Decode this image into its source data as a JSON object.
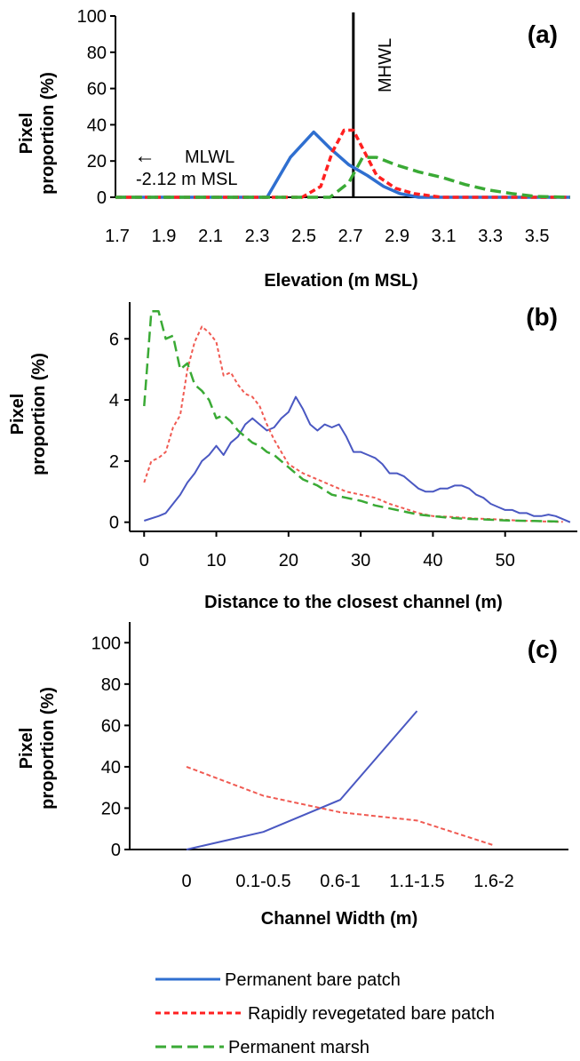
{
  "colors": {
    "permanent_bare_patch": "#2f6fd0",
    "permanent_bare_patch_c": "#4a58c2",
    "rapidly_revegetated": "#ff2020",
    "rapidly_revegetated_c": "#f05a52",
    "permanent_marsh": "#3aaa35"
  },
  "legend": {
    "items": [
      {
        "label": "Permanent bare patch",
        "color": "#2f6fd0",
        "dash": "solid"
      },
      {
        "label": "Rapidly revegetated bare patch",
        "color": "#ff2020",
        "dash": "short"
      },
      {
        "label": "Permanent marsh",
        "color": "#3aaa35",
        "dash": "long"
      }
    ]
  },
  "chart_data": [
    {
      "type": "line",
      "panel_label": "(a)",
      "title": "",
      "xlabel": "Elevation (m MSL)",
      "ylabel": [
        "Pixel",
        "proportion (%)"
      ],
      "xlim": [
        1.7,
        3.65
      ],
      "ylim": [
        0,
        100
      ],
      "xticks": [
        "1.7",
        "1.9",
        "2.1",
        "2.3",
        "2.5",
        "2.7",
        "2.9",
        "3.1",
        "3.3",
        "3.5"
      ],
      "yticks": [
        "0",
        "20",
        "40",
        "60",
        "80",
        "100"
      ],
      "vline": {
        "x": 2.72,
        "label": "MHWL"
      },
      "annotation": {
        "arrow": "←",
        "lines": [
          "MLWL",
          "-2.12 m MSL"
        ]
      },
      "series": [
        {
          "name": "Permanent bare patch",
          "x": [
            1.7,
            2.35,
            2.45,
            2.55,
            2.62,
            2.7,
            2.78,
            2.85,
            2.92,
            3.0,
            3.65
          ],
          "y": [
            0,
            0,
            22,
            36,
            27,
            18,
            12,
            6,
            2,
            0,
            0
          ]
        },
        {
          "name": "Rapidly revegetated bare patch",
          "x": [
            1.7,
            2.5,
            2.58,
            2.63,
            2.68,
            2.72,
            2.76,
            2.82,
            2.9,
            2.98,
            3.1,
            3.65
          ],
          "y": [
            0,
            0,
            6,
            25,
            37,
            37,
            27,
            12,
            5,
            2,
            0,
            0
          ]
        },
        {
          "name": "Permanent marsh",
          "x": [
            1.7,
            2.62,
            2.7,
            2.76,
            2.82,
            2.9,
            3.0,
            3.1,
            3.2,
            3.3,
            3.4,
            3.5,
            3.65
          ],
          "y": [
            0,
            0,
            8,
            22,
            22,
            18,
            14,
            11,
            7,
            4,
            2,
            0.5,
            0
          ]
        }
      ]
    },
    {
      "type": "line",
      "panel_label": "(b)",
      "title": "",
      "xlabel": "Distance to the closest channel (m)",
      "ylabel": [
        "Pixel",
        "proportion (%)"
      ],
      "xlim": [
        -2,
        60
      ],
      "ylim": [
        -0.3,
        7.2
      ],
      "xticks": [
        "0",
        "10",
        "20",
        "30",
        "40",
        "50"
      ],
      "yticks": [
        "0",
        "2",
        "4",
        "6"
      ],
      "series": [
        {
          "name": "Permanent bare patch",
          "x": [
            0,
            2,
            3,
            4,
            5,
            6,
            7,
            8,
            9,
            10,
            11,
            12,
            13,
            14,
            15,
            16,
            17,
            18,
            19,
            20,
            21,
            22,
            23,
            24,
            25,
            26,
            27,
            28,
            29,
            30,
            31,
            32,
            33,
            34,
            35,
            36,
            37,
            38,
            39,
            40,
            41,
            42,
            43,
            44,
            45,
            46,
            47,
            48,
            49,
            50,
            51,
            52,
            53,
            54,
            55,
            56,
            57,
            58,
            59
          ],
          "y": [
            0.05,
            0.2,
            0.3,
            0.6,
            0.9,
            1.3,
            1.6,
            2.0,
            2.2,
            2.5,
            2.2,
            2.6,
            2.8,
            3.2,
            3.4,
            3.2,
            3.0,
            3.1,
            3.4,
            3.6,
            4.1,
            3.7,
            3.2,
            3.0,
            3.2,
            3.1,
            3.2,
            2.8,
            2.3,
            2.3,
            2.2,
            2.1,
            1.9,
            1.6,
            1.6,
            1.5,
            1.3,
            1.1,
            1.0,
            1.0,
            1.1,
            1.1,
            1.2,
            1.2,
            1.1,
            0.9,
            0.8,
            0.6,
            0.5,
            0.4,
            0.4,
            0.3,
            0.3,
            0.2,
            0.2,
            0.25,
            0.2,
            0.1,
            0.0
          ]
        },
        {
          "name": "Rapidly revegetated bare patch",
          "x": [
            0,
            1,
            2,
            3,
            4,
            5,
            6,
            7,
            8,
            9,
            10,
            11,
            12,
            13,
            14,
            15,
            16,
            17,
            18,
            19,
            20,
            22,
            24,
            26,
            28,
            30,
            32,
            34,
            36,
            38,
            40,
            42,
            44,
            46,
            48,
            50,
            52,
            54,
            56,
            58
          ],
          "y": [
            1.3,
            2.0,
            2.1,
            2.3,
            3.1,
            3.5,
            5.0,
            5.9,
            6.4,
            6.2,
            5.9,
            4.8,
            4.9,
            4.5,
            4.2,
            4.1,
            3.8,
            3.2,
            2.7,
            2.3,
            1.9,
            1.6,
            1.4,
            1.2,
            1.0,
            0.9,
            0.8,
            0.6,
            0.45,
            0.3,
            0.2,
            0.18,
            0.15,
            0.12,
            0.1,
            0.08,
            0.05,
            0.04,
            0.02,
            0.01
          ]
        },
        {
          "name": "Permanent marsh",
          "x": [
            0,
            1,
            2,
            3,
            4,
            5,
            6,
            7,
            8,
            9,
            10,
            11,
            12,
            13,
            14,
            15,
            16,
            17,
            18,
            19,
            20,
            22,
            24,
            26,
            28,
            30,
            32,
            34,
            36,
            38,
            40,
            42,
            44,
            46,
            48,
            50,
            52,
            54,
            56,
            58
          ],
          "y": [
            3.8,
            6.9,
            6.9,
            6.0,
            6.1,
            5.0,
            5.2,
            4.5,
            4.3,
            4.0,
            3.4,
            3.5,
            3.3,
            3.0,
            2.8,
            2.6,
            2.5,
            2.3,
            2.2,
            2.0,
            1.8,
            1.4,
            1.2,
            0.9,
            0.8,
            0.7,
            0.55,
            0.45,
            0.35,
            0.25,
            0.2,
            0.15,
            0.12,
            0.1,
            0.08,
            0.06,
            0.05,
            0.04,
            0.03,
            0.02
          ]
        }
      ]
    },
    {
      "type": "line",
      "panel_label": "(c)",
      "title": "",
      "xlabel": "Channel Width (m)",
      "ylabel": [
        "Pixel",
        "proportion (%)"
      ],
      "categories": [
        "0",
        "0.1-0.5",
        "0.6-1",
        "1.1-1.5",
        "1.6-2"
      ],
      "ylim": [
        0,
        110
      ],
      "yticks": [
        "0",
        "20",
        "40",
        "60",
        "80",
        "100"
      ],
      "series": [
        {
          "name": "Permanent bare patch",
          "values": [
            0,
            8.5,
            24,
            67,
            null
          ]
        },
        {
          "name": "Rapidly revegetated bare patch",
          "values": [
            40,
            26,
            18,
            14,
            2
          ]
        }
      ]
    }
  ]
}
